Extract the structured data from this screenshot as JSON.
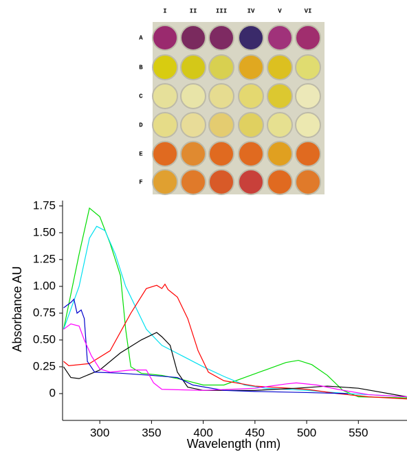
{
  "plate": {
    "columns": [
      "I",
      "II",
      "III",
      "IV",
      "V",
      "VI"
    ],
    "rows": [
      "A",
      "B",
      "C",
      "D",
      "E",
      "F"
    ]
  },
  "chart_data": {
    "type": "line",
    "xlabel": "Wavelength (nm)",
    "ylabel": "Absorbance AU",
    "xlim": [
      264,
      597
    ],
    "ylim": [
      -0.25,
      1.8
    ],
    "xticks": [
      300,
      350,
      400,
      450,
      500,
      550
    ],
    "yticks": [
      0,
      0.25,
      {
        "value": 0.5,
        "label": "0.50"
      },
      0.75,
      {
        "value": 1,
        "label": "1.00"
      },
      1.25,
      {
        "value": 1.5,
        "label": "1.50"
      },
      1.75
    ],
    "series": [
      {
        "color": "#00dd00",
        "x": [
          265,
          280,
          290,
          300,
          310,
          320,
          325,
          330,
          340,
          360,
          380,
          400,
          420,
          440,
          460,
          480,
          492,
          505,
          520,
          535,
          550,
          597
        ],
        "values": [
          0.6,
          1.3,
          1.73,
          1.65,
          1.4,
          1.1,
          0.6,
          0.25,
          0.19,
          0.17,
          0.13,
          0.08,
          0.08,
          0.15,
          0.22,
          0.29,
          0.31,
          0.27,
          0.17,
          0.03,
          -0.03,
          -0.04
        ]
      },
      {
        "color": "#00e0f0",
        "x": [
          265,
          280,
          290,
          297,
          305,
          315,
          325,
          335,
          345,
          360,
          380,
          400,
          420,
          440,
          460,
          500,
          540,
          597
        ],
        "values": [
          0.6,
          1.0,
          1.45,
          1.56,
          1.52,
          1.3,
          1.0,
          0.8,
          0.6,
          0.45,
          0.35,
          0.25,
          0.16,
          0.08,
          0.05,
          0.03,
          0.0,
          -0.03
        ]
      },
      {
        "color": "#ff0000",
        "x": [
          265,
          270,
          290,
          310,
          330,
          345,
          355,
          360,
          363,
          366,
          375,
          385,
          395,
          405,
          420,
          450,
          500,
          530,
          560,
          597
        ],
        "values": [
          0.3,
          0.26,
          0.28,
          0.4,
          0.75,
          0.98,
          1.01,
          0.98,
          1.02,
          0.97,
          0.9,
          0.7,
          0.4,
          0.2,
          0.12,
          0.07,
          0.04,
          0.0,
          -0.03,
          -0.05
        ]
      },
      {
        "color": "#000000",
        "x": [
          265,
          272,
          280,
          300,
          320,
          340,
          355,
          360,
          368,
          375,
          385,
          400,
          450,
          490,
          520,
          550,
          597
        ],
        "values": [
          0.25,
          0.15,
          0.14,
          0.22,
          0.38,
          0.5,
          0.57,
          0.53,
          0.45,
          0.2,
          0.06,
          0.03,
          0.03,
          0.05,
          0.07,
          0.05,
          -0.03
        ]
      },
      {
        "color": "#0000cc",
        "x": [
          265,
          272,
          275,
          278,
          282,
          285,
          288,
          295,
          320,
          350,
          375,
          390,
          420,
          450,
          500,
          540
        ],
        "values": [
          0.8,
          0.85,
          0.88,
          0.75,
          0.78,
          0.7,
          0.3,
          0.2,
          0.19,
          0.17,
          0.15,
          0.08,
          0.03,
          0.02,
          0.01,
          0.0
        ]
      },
      {
        "color": "#ff00ff",
        "x": [
          265,
          272,
          280,
          285,
          292,
          300,
          310,
          330,
          345,
          352,
          360,
          400,
          450,
          480,
          490,
          510,
          530,
          560,
          597
        ],
        "values": [
          0.6,
          0.65,
          0.63,
          0.5,
          0.35,
          0.23,
          0.2,
          0.22,
          0.22,
          0.1,
          0.04,
          0.03,
          0.05,
          0.09,
          0.1,
          0.08,
          0.04,
          -0.01,
          -0.03
        ]
      }
    ]
  }
}
